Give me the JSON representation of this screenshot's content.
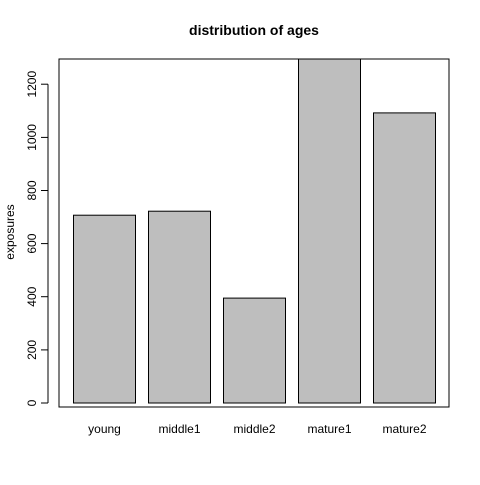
{
  "chart_data": {
    "type": "bar",
    "title": "distribution of ages",
    "xlabel": "",
    "ylabel": "exposures",
    "categories": [
      "young",
      "middle1",
      "middle2",
      "mature1",
      "mature2"
    ],
    "values": [
      707,
      722,
      395,
      1295,
      1092
    ],
    "ylim": [
      0,
      1295
    ],
    "yticks": [
      0,
      200,
      400,
      600,
      800,
      1000,
      1200
    ],
    "grid": false,
    "legend": "none",
    "colors": {
      "bar_fill": "#bebebe",
      "bar_stroke": "#000000",
      "axis": "#000000",
      "background": "#ffffff"
    }
  }
}
